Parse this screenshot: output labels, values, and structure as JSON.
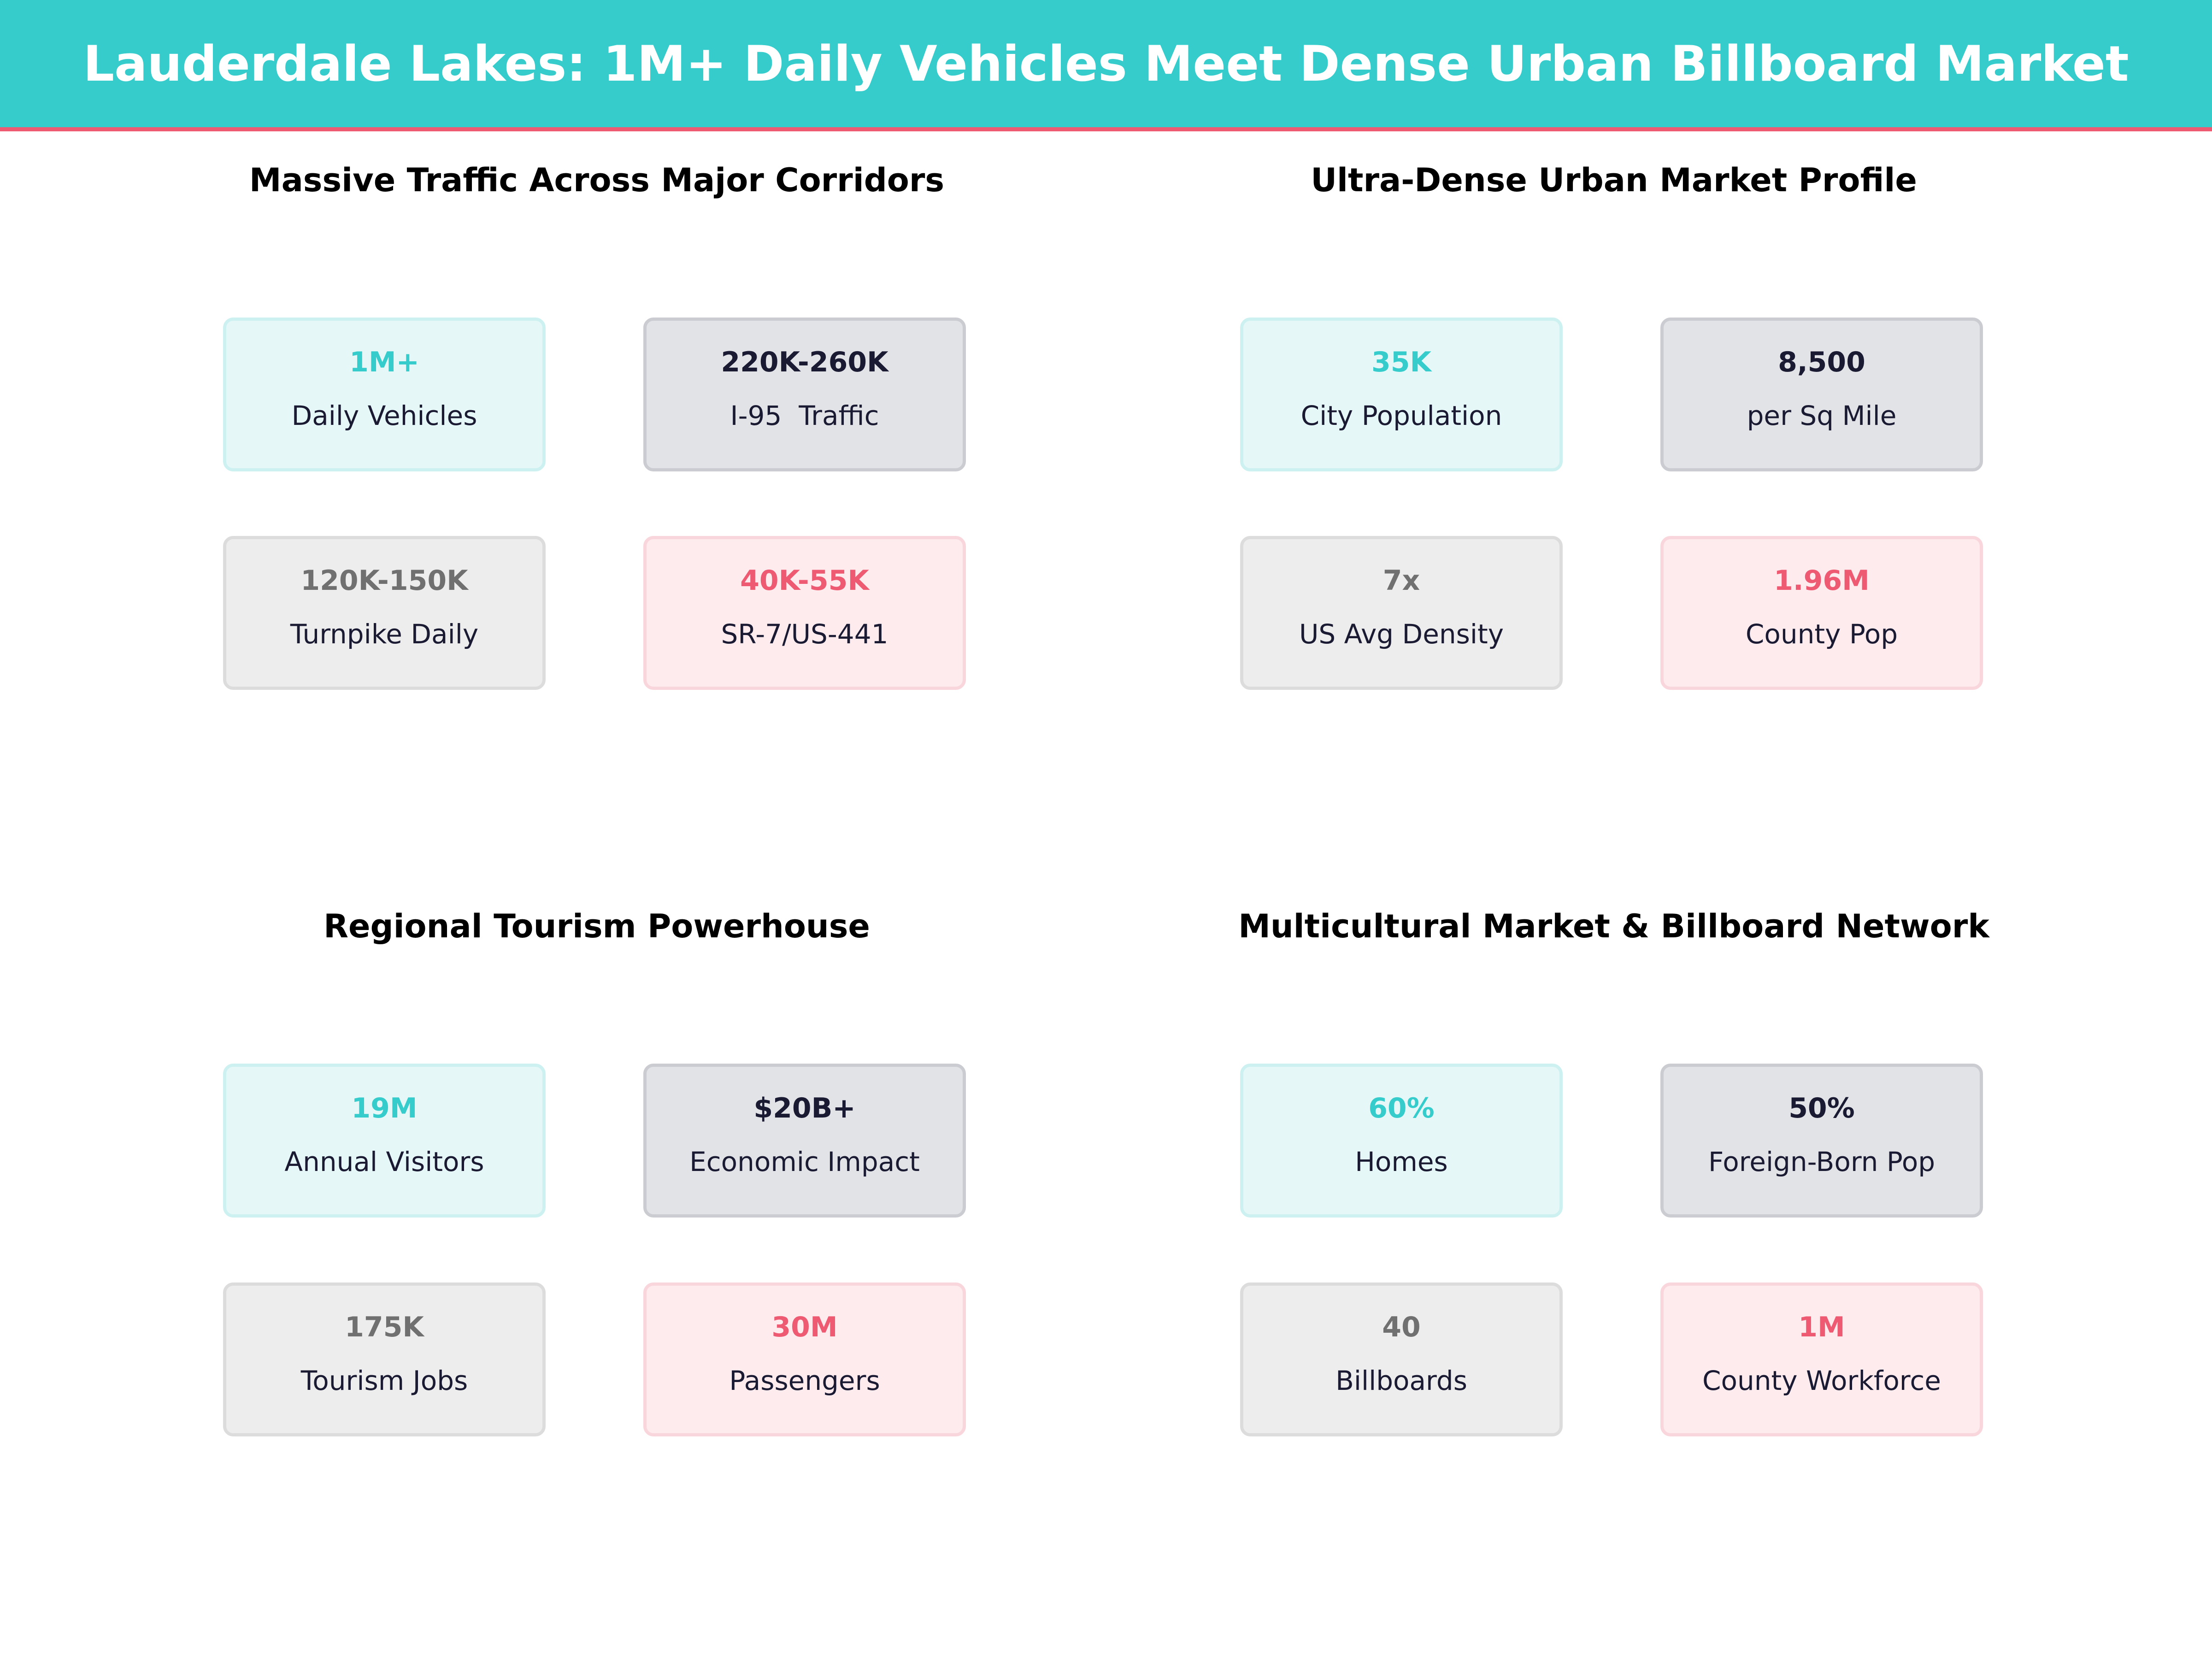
{
  "title": "Lauderdale Lakes: 1M+ Daily Vehicles Meet Dense Urban Billboard Market",
  "colors": {
    "accent": "#36CCCC",
    "highlight": "#EE5A72",
    "dark": "#1A1A33",
    "grey": "#707070"
  },
  "sections": [
    {
      "title": "Massive Traffic Across Major Corridors",
      "cards": [
        {
          "value": "1M+",
          "label": "Daily Vehicles"
        },
        {
          "value": "220K-260K",
          "label": "I-95  Traffic"
        },
        {
          "value": "120K-150K",
          "label": "Turnpike Daily"
        },
        {
          "value": "40K-55K",
          "label": "SR-7/US-441"
        }
      ]
    },
    {
      "title": "Ultra-Dense Urban Market Profile",
      "cards": [
        {
          "value": "35K",
          "label": "City Population"
        },
        {
          "value": "8,500",
          "label": "per Sq Mile"
        },
        {
          "value": "7x",
          "label": "US Avg Density"
        },
        {
          "value": "1.96M",
          "label": "County Pop"
        }
      ]
    },
    {
      "title": "Regional Tourism Powerhouse",
      "cards": [
        {
          "value": "19M",
          "label": "Annual Visitors"
        },
        {
          "value": "$20B+",
          "label": "Economic Impact"
        },
        {
          "value": "175K",
          "label": "Tourism Jobs"
        },
        {
          "value": "30M",
          "label": "Passengers"
        }
      ]
    },
    {
      "title": "Multicultural Market & Billboard Network",
      "cards": [
        {
          "value": "60%",
          "label": "Homes"
        },
        {
          "value": "50%",
          "label": "Foreign-Born Pop"
        },
        {
          "value": "40",
          "label": "Billboards"
        },
        {
          "value": "1M",
          "label": "County Workforce"
        }
      ]
    }
  ]
}
